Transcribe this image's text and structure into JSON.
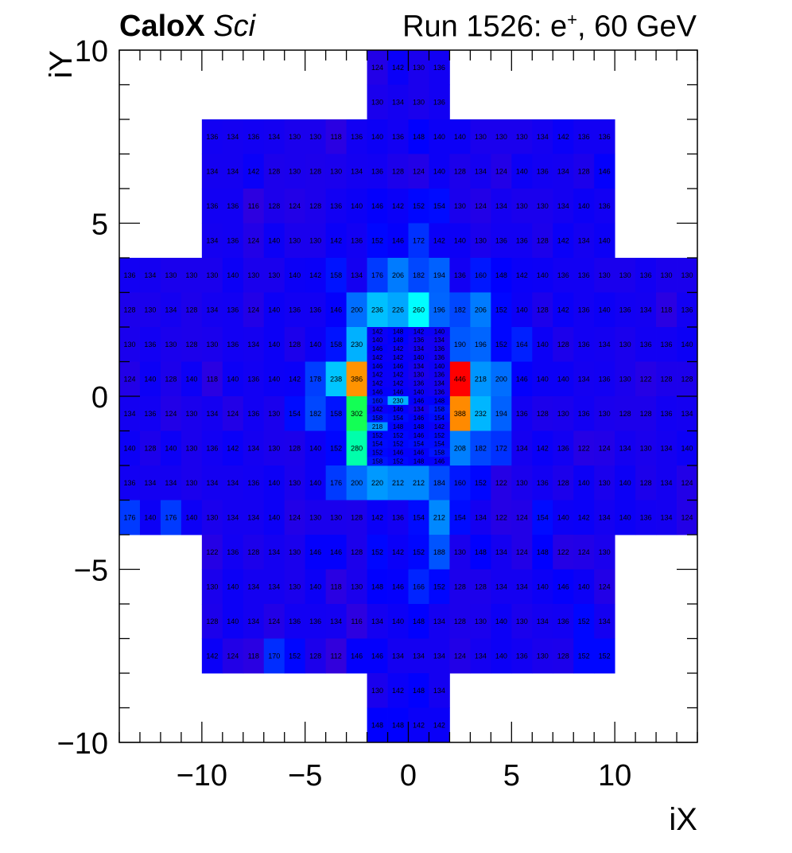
{
  "header": {
    "brand": "CaloX",
    "brand_suffix": "Sci",
    "run_prefix": "Run 1526: e",
    "particle_charge": "+",
    "run_suffix": ", 60 GeV"
  },
  "chart_data": {
    "type": "heatmap",
    "xlabel": "iX",
    "ylabel": "iY",
    "xlim": [
      -14,
      14
    ],
    "ylim": [
      -10,
      10
    ],
    "xticks": [
      -10,
      -5,
      0,
      5,
      10
    ],
    "yticks": [
      -10,
      -5,
      0,
      5,
      10
    ],
    "xtick_labels": [
      "−10",
      "−5",
      "0",
      "5",
      "10"
    ],
    "ytick_labels": [
      "−10",
      "−5",
      "0",
      "5",
      "10"
    ],
    "colorscale": [
      "#3200dc",
      "#0000ff",
      "#0050ff",
      "#00a0ff",
      "#00ffff",
      "#00ff60",
      "#a0ff00",
      "#ffd000",
      "#ff3000",
      "#ff0000"
    ],
    "zrange": [
      112,
      446
    ],
    "coarse_cells": [
      {
        "x0": -2,
        "x1": 2,
        "y0": 9,
        "y1": 10,
        "values": [
          124,
          142,
          130,
          136
        ]
      },
      {
        "x0": -2,
        "x1": 2,
        "y0": 8,
        "y1": 9,
        "values": [
          130,
          134,
          130,
          136
        ]
      },
      {
        "x0": -10,
        "x1": 10,
        "y0": 7,
        "y1": 8,
        "values": [
          136,
          134,
          136,
          134,
          130,
          130,
          118,
          136,
          140,
          136,
          148,
          140,
          140,
          130,
          130,
          130,
          134,
          142,
          136,
          136
        ]
      },
      {
        "x0": -10,
        "x1": 10,
        "y0": 6,
        "y1": 7,
        "values": [
          134,
          134,
          142,
          128,
          130,
          128,
          130,
          134,
          136,
          128,
          124,
          140,
          128,
          134,
          124,
          140,
          136,
          134,
          128,
          146
        ]
      },
      {
        "x0": -10,
        "x1": 10,
        "y0": 5,
        "y1": 6,
        "values": [
          136,
          136,
          116,
          128,
          124,
          128,
          136,
          140,
          146,
          142,
          152,
          154,
          130,
          124,
          134,
          130,
          130,
          134,
          140,
          136
        ]
      },
      {
        "x0": -10,
        "x1": 10,
        "y0": 4,
        "y1": 5,
        "values": [
          134,
          136,
          124,
          140,
          130,
          130,
          142,
          136,
          152,
          146,
          172,
          142,
          140,
          130,
          136,
          136,
          128,
          142,
          134,
          140
        ]
      },
      {
        "x0": -14,
        "x1": 14,
        "y0": 3,
        "y1": 4,
        "values": [
          136,
          134,
          130,
          130,
          130,
          140,
          130,
          130,
          140,
          142,
          158,
          134,
          176,
          206,
          182,
          194,
          136,
          160,
          148,
          142,
          140,
          136,
          136,
          130,
          130,
          136,
          130,
          130
        ]
      },
      {
        "x0": -14,
        "x1": 14,
        "y0": 2,
        "y1": 3,
        "values": [
          128,
          130,
          134,
          128,
          134,
          136,
          124,
          140,
          136,
          136,
          146,
          200,
          236,
          226,
          260,
          196,
          182,
          206,
          152,
          140,
          128,
          142,
          136,
          140,
          136,
          134,
          118,
          136
        ]
      },
      {
        "x0": -14,
        "x1": -2,
        "y0": 1,
        "y1": 2,
        "values": [
          130,
          136,
          130,
          128,
          130,
          136,
          134,
          140,
          128,
          140,
          158,
          230
        ]
      },
      {
        "x0": 2,
        "x1": 14,
        "y0": 1,
        "y1": 2,
        "values": [
          190,
          196,
          152,
          164,
          140,
          128,
          136,
          134,
          130,
          136,
          136,
          140
        ]
      },
      {
        "x0": -14,
        "x1": -2,
        "y0": 0,
        "y1": 1,
        "values": [
          124,
          140,
          128,
          140,
          118,
          140,
          136,
          140,
          142,
          178,
          238,
          386
        ]
      },
      {
        "x0": 2,
        "x1": 14,
        "y0": 0,
        "y1": 1,
        "values": [
          446,
          218,
          200,
          146,
          140,
          140,
          134,
          136,
          130,
          122,
          128,
          128
        ]
      },
      {
        "x0": -14,
        "x1": -2,
        "y0": -1,
        "y1": 0,
        "values": [
          134,
          136,
          124,
          130,
          134,
          124,
          136,
          130,
          154,
          182,
          158,
          302
        ]
      },
      {
        "x0": 2,
        "x1": 14,
        "y0": -1,
        "y1": 0,
        "values": [
          388,
          232,
          194,
          136,
          128,
          130,
          136,
          130,
          128,
          128,
          136,
          134
        ]
      },
      {
        "x0": -14,
        "x1": -2,
        "y0": -2,
        "y1": -1,
        "values": [
          140,
          128,
          140,
          130,
          136,
          142,
          134,
          130,
          128,
          140,
          152,
          280
        ]
      },
      {
        "x0": 2,
        "x1": 14,
        "y0": -2,
        "y1": -1,
        "values": [
          208,
          182,
          172,
          134,
          142,
          136,
          122,
          124,
          134,
          130,
          134,
          140
        ]
      },
      {
        "x0": -14,
        "x1": 14,
        "y0": -3,
        "y1": -2,
        "values": [
          136,
          134,
          134,
          130,
          134,
          134,
          136,
          140,
          130,
          140,
          176,
          200,
          220,
          212,
          212,
          184,
          160,
          152,
          122,
          130,
          136,
          128,
          140,
          130,
          140,
          128,
          134,
          124
        ]
      },
      {
        "x0": -14,
        "x1": 14,
        "y0": -4,
        "y1": -3,
        "values": [
          176,
          140,
          176,
          140,
          130,
          134,
          134,
          140,
          124,
          130,
          130,
          128,
          142,
          136,
          154,
          212,
          154,
          134,
          122,
          124,
          154,
          140,
          142,
          134,
          140,
          136,
          134,
          124
        ]
      },
      {
        "x0": -10,
        "x1": 10,
        "y0": -5,
        "y1": -4,
        "values": [
          122,
          136,
          128,
          134,
          130,
          146,
          146,
          128,
          152,
          142,
          152,
          188,
          130,
          148,
          134,
          124,
          148,
          122,
          124,
          130
        ]
      },
      {
        "x0": -10,
        "x1": 10,
        "y0": -6,
        "y1": -5,
        "values": [
          130,
          140,
          134,
          134,
          130,
          140,
          118,
          130,
          148,
          146,
          166,
          152,
          128,
          128,
          134,
          134,
          140,
          146,
          140,
          124
        ]
      },
      {
        "x0": -10,
        "x1": 10,
        "y0": -7,
        "y1": -6,
        "values": [
          128,
          140,
          134,
          124,
          136,
          136,
          134,
          116,
          134,
          140,
          148,
          134,
          128,
          130,
          140,
          130,
          134,
          136,
          152,
          134
        ]
      },
      {
        "x0": -10,
        "x1": 10,
        "y0": -8,
        "y1": -7,
        "values": [
          142,
          124,
          118,
          170,
          152,
          128,
          112,
          146,
          146,
          134,
          134,
          134,
          124,
          134,
          140,
          136,
          130,
          128,
          152,
          152
        ]
      },
      {
        "x0": -2,
        "x1": 2,
        "y0": -9,
        "y1": -8,
        "values": [
          130,
          142,
          148,
          134
        ]
      },
      {
        "x0": -2,
        "x1": 2,
        "y0": -10,
        "y1": -9,
        "values": [
          148,
          148,
          142,
          142
        ]
      }
    ],
    "fine_region": {
      "x0": -2,
      "x1": 2,
      "y0": -2,
      "y1": 2,
      "columns": 4,
      "rows": [
        [
          142,
          148,
          142,
          140
        ],
        [
          140,
          148,
          136,
          134
        ],
        [
          146,
          142,
          134,
          136
        ],
        [
          142,
          142,
          140,
          136
        ],
        [
          146,
          146,
          134,
          140
        ],
        [
          142,
          142,
          130,
          136
        ],
        [
          142,
          142,
          136,
          134
        ],
        [
          146,
          146,
          140,
          136
        ],
        [
          160,
          230,
          146,
          148
        ],
        [
          142,
          146,
          134,
          158
        ],
        [
          158,
          154,
          146,
          154
        ],
        [
          218,
          148,
          148,
          142
        ],
        [
          152,
          152,
          146,
          152
        ],
        [
          154,
          152,
          154,
          154
        ],
        [
          152,
          146,
          146,
          158
        ],
        [
          158,
          152,
          148,
          146
        ]
      ]
    }
  }
}
